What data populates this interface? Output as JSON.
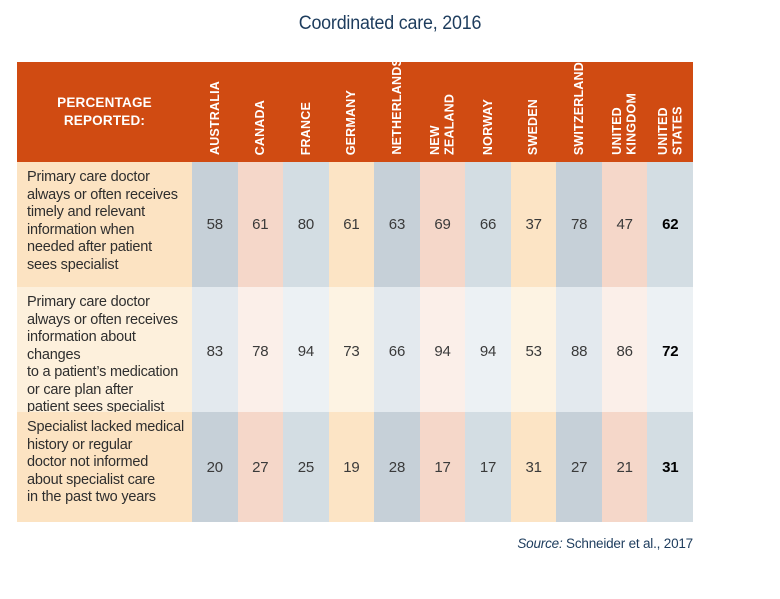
{
  "title": "Coordinated care, 2016",
  "header": {
    "corner_label": "PERCENTAGE\nREPORTED:",
    "column_labels_display": [
      "AUSTRALIA",
      "CANADA",
      "FRANCE",
      "GERMANY",
      "NETHERLANDS",
      "NEW ZEALAND",
      "NORWAY",
      "SWEDEN",
      "SWITZERLAND",
      "UNITED\nKINGDOM",
      "UNITED STATES"
    ]
  },
  "source": {
    "prefix": "Source:",
    "citation": " Schneider et al., 2017"
  },
  "chart_data": {
    "type": "table",
    "title": "Coordinated care, 2016",
    "unit": "percent reported",
    "categories": [
      "AUSTRALIA",
      "CANADA",
      "FRANCE",
      "GERMANY",
      "NETHERLANDS",
      "NEW ZEALAND",
      "NORWAY",
      "SWEDEN",
      "SWITZERLAND",
      "UNITED KINGDOM",
      "UNITED STATES"
    ],
    "series": [
      {
        "name": "Primary care doctor always or often receives timely and relevant information when needed after patient sees specialist",
        "label_lines": "Primary care doctor\nalways or often receives\ntimely and relevant\ninformation when\nneeded after patient\nsees specialist",
        "values": [
          58,
          61,
          80,
          61,
          63,
          69,
          66,
          37,
          78,
          47,
          62
        ]
      },
      {
        "name": "Primary care doctor always or often receives information about changes to a patient’s medication or care plan after patient sees specialist",
        "label_lines": "Primary care doctor\nalways or often receives\ninformation about changes\nto a patient’s medication\nor care plan after\npatient sees specialist",
        "values": [
          83,
          78,
          94,
          73,
          66,
          94,
          94,
          53,
          88,
          86,
          72
        ]
      },
      {
        "name": "Specialist lacked medical history or regular doctor not informed about specialist care in the past two years",
        "label_lines": "Specialist lacked medical\nhistory or regular\ndoctor not informed\nabout specialist care\nin the past two years",
        "values": [
          20,
          27,
          25,
          19,
          28,
          17,
          17,
          31,
          27,
          21,
          31
        ]
      }
    ],
    "emphasized_column": "UNITED STATES",
    "legend_position": "none"
  },
  "style": {
    "header_bg": "#d04b12",
    "header_text": "#ffffff",
    "title_text": "#1d3c5d",
    "source_text": "#1d3c5d",
    "value_text": "#3a3a3a",
    "value_text_emphasis": "#000000",
    "row_label_text": "#2e2e2e",
    "label_col": {
      "strong": "#fce3c2",
      "light": "#fdf0dc"
    },
    "palettes": {
      "blue": {
        "strong": "#c6d0d8",
        "light": "#e3e9ee"
      },
      "salmon": {
        "strong": "#f5d7c9",
        "light": "#fbefe9"
      },
      "lightblue": {
        "strong": "#d3dde3",
        "light": "#ecf1f4"
      },
      "peach": {
        "strong": "#fce4c5",
        "light": "#fdf3e3"
      }
    },
    "column_palette_order": [
      "blue",
      "salmon",
      "lightblue",
      "peach",
      "blue",
      "salmon",
      "lightblue",
      "peach",
      "blue",
      "salmon",
      "lightblue"
    ],
    "row_shades": [
      "strong",
      "light",
      "strong"
    ]
  }
}
